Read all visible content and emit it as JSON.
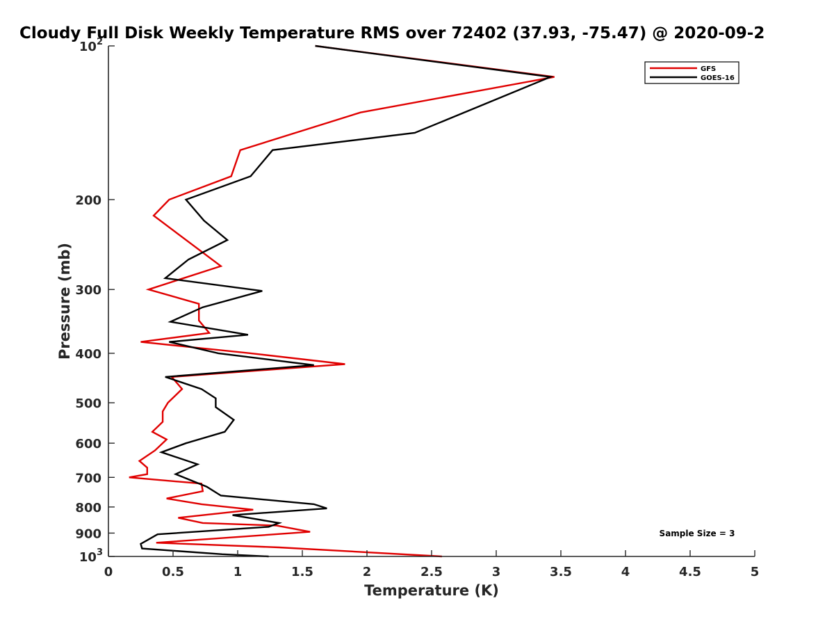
{
  "chart_data": {
    "type": "line",
    "title": "Cloudy Full Disk Weekly Temperature RMS over 72402 (37.93, -75.47) @ 2020-09-2",
    "xlabel": "Temperature (K)",
    "ylabel": "Pressure (mb)",
    "xlim": [
      0,
      5
    ],
    "ylim": [
      100,
      1000
    ],
    "y_scale": "log",
    "y_reversed": true,
    "grid": false,
    "legend_position": "top-right",
    "x_ticks": [
      "0",
      "0.5",
      "1",
      "1.5",
      "2",
      "2.5",
      "3",
      "3.5",
      "4",
      "4.5",
      "5"
    ],
    "y_ticks": [
      {
        "value": 100,
        "base": "10",
        "exp": "2",
        "label": ""
      },
      {
        "value": 200,
        "label": "200"
      },
      {
        "value": 300,
        "label": "300"
      },
      {
        "value": 400,
        "label": "400"
      },
      {
        "value": 500,
        "label": "500"
      },
      {
        "value": 600,
        "label": "600"
      },
      {
        "value": 700,
        "label": "700"
      },
      {
        "value": 800,
        "label": "800"
      },
      {
        "value": 900,
        "label": "900"
      },
      {
        "value": 1000,
        "base": "10",
        "exp": "3",
        "label": ""
      }
    ],
    "series": [
      {
        "name": "GFS",
        "color": "#e00000",
        "points": [
          [
            1.6,
            100
          ],
          [
            3.45,
            115
          ],
          [
            1.95,
            135
          ],
          [
            1.02,
            160
          ],
          [
            0.95,
            180
          ],
          [
            0.47,
            200
          ],
          [
            0.35,
            215
          ],
          [
            0.87,
            270
          ],
          [
            0.31,
            300
          ],
          [
            0.7,
            320
          ],
          [
            0.7,
            345
          ],
          [
            0.78,
            365
          ],
          [
            0.25,
            380
          ],
          [
            1.1,
            400
          ],
          [
            1.83,
            420
          ],
          [
            0.49,
            445
          ],
          [
            0.57,
            470
          ],
          [
            0.46,
            500
          ],
          [
            0.42,
            520
          ],
          [
            0.42,
            545
          ],
          [
            0.34,
            570
          ],
          [
            0.45,
            590
          ],
          [
            0.36,
            620
          ],
          [
            0.24,
            650
          ],
          [
            0.3,
            670
          ],
          [
            0.3,
            690
          ],
          [
            0.16,
            700
          ],
          [
            0.72,
            720
          ],
          [
            0.73,
            745
          ],
          [
            0.45,
            770
          ],
          [
            0.72,
            790
          ],
          [
            1.12,
            810
          ],
          [
            0.54,
            840
          ],
          [
            0.73,
            860
          ],
          [
            1.3,
            870
          ],
          [
            1.56,
            895
          ],
          [
            0.37,
            940
          ],
          [
            1.32,
            960
          ],
          [
            2.58,
            1000
          ]
        ]
      },
      {
        "name": "GOES-16",
        "color": "#000000",
        "points": [
          [
            1.6,
            100
          ],
          [
            3.42,
            115
          ],
          [
            2.37,
            148
          ],
          [
            1.27,
            160
          ],
          [
            1.1,
            180
          ],
          [
            0.6,
            200
          ],
          [
            0.74,
            220
          ],
          [
            0.92,
            240
          ],
          [
            0.62,
            262
          ],
          [
            0.44,
            285
          ],
          [
            1.19,
            302
          ],
          [
            0.73,
            325
          ],
          [
            0.48,
            347
          ],
          [
            1.08,
            368
          ],
          [
            0.47,
            380
          ],
          [
            0.85,
            400
          ],
          [
            1.59,
            422
          ],
          [
            0.44,
            445
          ],
          [
            0.72,
            470
          ],
          [
            0.83,
            490
          ],
          [
            0.83,
            510
          ],
          [
            0.97,
            540
          ],
          [
            0.9,
            570
          ],
          [
            0.6,
            600
          ],
          [
            0.41,
            625
          ],
          [
            0.69,
            660
          ],
          [
            0.52,
            690
          ],
          [
            0.76,
            730
          ],
          [
            0.87,
            760
          ],
          [
            1.59,
            790
          ],
          [
            1.69,
            805
          ],
          [
            0.96,
            830
          ],
          [
            1.32,
            860
          ],
          [
            1.24,
            875
          ],
          [
            0.38,
            905
          ],
          [
            0.25,
            945
          ],
          [
            0.26,
            965
          ],
          [
            0.88,
            990
          ],
          [
            1.24,
            1000
          ]
        ]
      }
    ],
    "annotation": "Sample Size = 3"
  }
}
